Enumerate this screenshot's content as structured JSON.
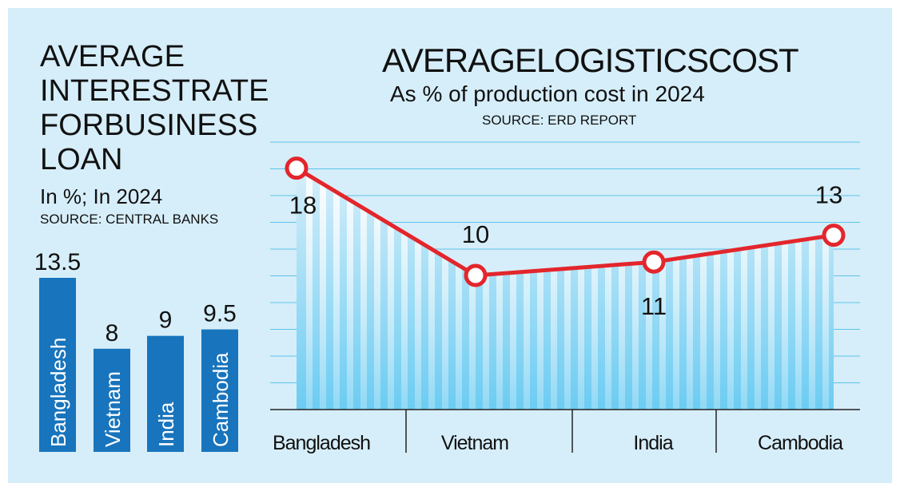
{
  "chart_data": [
    {
      "type": "bar",
      "title": "AVERAGE INTERESTRATE FORBUSINESS LOAN",
      "title_lines": [
        "AVERAGE",
        "INTERESTRATE",
        "FORBUSINESS",
        "LOAN"
      ],
      "subtitle": "In %; In 2024",
      "source": "SOURCE: CENTRAL BANKS",
      "categories": [
        "Bangladesh",
        "Vietnam",
        "India",
        "Cambodia"
      ],
      "values": [
        13.5,
        8,
        9,
        9.5
      ],
      "value_labels": [
        "13.5",
        "8",
        "9",
        "9.5"
      ],
      "ylim": [
        0,
        13.5
      ],
      "bar_color": "#1874bc"
    },
    {
      "type": "line",
      "title": "AVERAGELOGISTICSCOST",
      "subtitle": "As % of production cost in 2024",
      "source": "SOURCE: ERD REPORT",
      "categories": [
        "Bangladesh",
        "Vietnam",
        "India",
        "Cambodia"
      ],
      "values": [
        18,
        10,
        11,
        13
      ],
      "value_labels": [
        "18",
        "10",
        "11",
        "13"
      ],
      "ylim": [
        0,
        20
      ],
      "grid": true,
      "line_color": "#e3262c",
      "marker_fill": "#ffffff",
      "area_color": "#7dd0f0"
    }
  ],
  "colors": {
    "background": "#d6eef9",
    "gridline": "#5cc4ea",
    "text": "#111111"
  }
}
